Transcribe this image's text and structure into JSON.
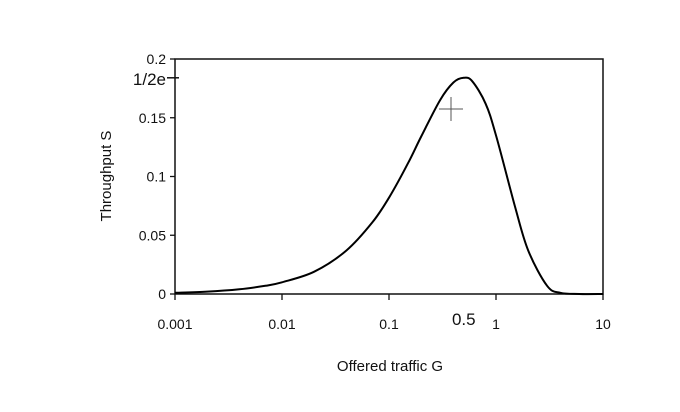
{
  "chart_data": {
    "type": "line",
    "title": "",
    "xlabel": "Offered traffic G",
    "ylabel": "Throughput S",
    "xscale": "log",
    "xlim": [
      0.001,
      10
    ],
    "ylim": [
      0,
      0.2
    ],
    "x_ticks": [
      {
        "value": 0.001,
        "label": "0.001"
      },
      {
        "value": 0.01,
        "label": "0.01"
      },
      {
        "value": 0.1,
        "label": "0.1"
      },
      {
        "value": 1,
        "label": "1"
      },
      {
        "value": 10,
        "label": "10"
      }
    ],
    "y_ticks": [
      {
        "value": 0,
        "label": "0"
      },
      {
        "value": 0.05,
        "label": "0.05"
      },
      {
        "value": 0.1,
        "label": "0.1"
      },
      {
        "value": 0.15,
        "label": "0.15"
      },
      {
        "value": 0.2,
        "label": "0.2"
      }
    ],
    "annotations": [
      {
        "axis": "y",
        "value": 0.184,
        "label": "1/2e"
      },
      {
        "axis": "x",
        "value": 0.5,
        "label": "0.5"
      }
    ],
    "grid": false,
    "legend": "none",
    "series": [
      {
        "color": "#000000",
        "x": [
          0.001,
          0.002,
          0.004,
          0.007,
          0.01,
          0.02,
          0.04,
          0.07,
          0.1,
          0.15,
          0.2,
          0.3,
          0.4,
          0.5,
          0.6,
          0.8,
          1,
          1.5,
          2,
          3,
          4,
          6,
          10
        ],
        "y": [
          0.001,
          0.002,
          0.004,
          0.007,
          0.01,
          0.019,
          0.037,
          0.061,
          0.082,
          0.111,
          0.134,
          0.165,
          0.18,
          0.184,
          0.181,
          0.162,
          0.135,
          0.075,
          0.037,
          0.007,
          0.001,
          0.0,
          0.0
        ]
      }
    ]
  }
}
